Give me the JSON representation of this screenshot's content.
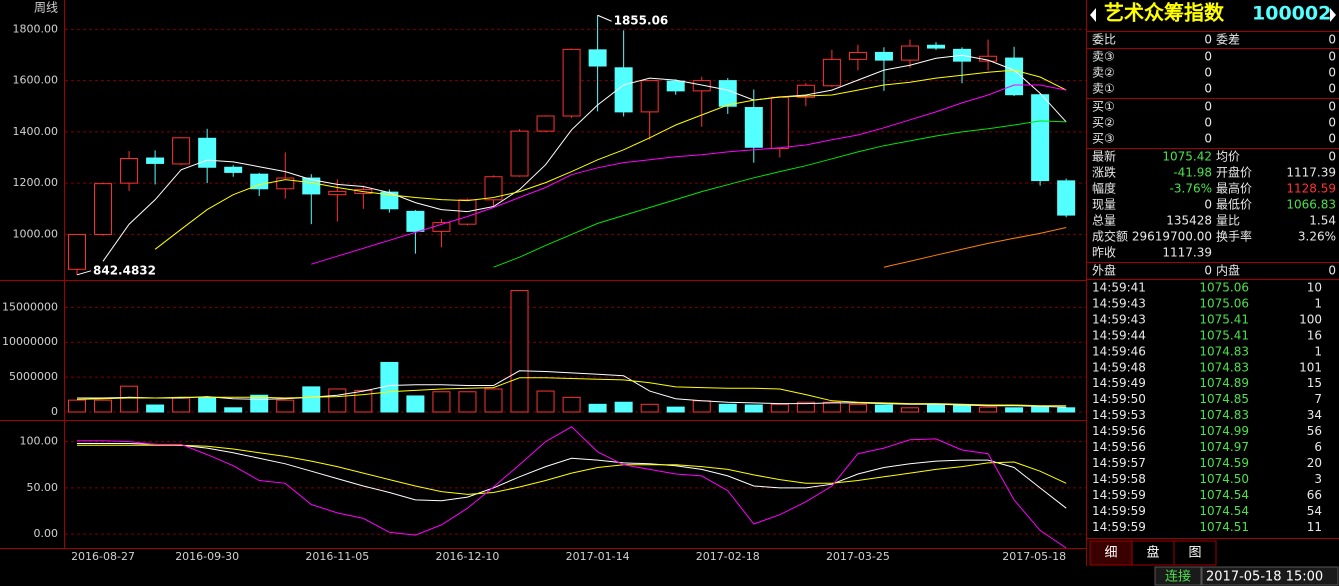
{
  "chart_data": [
    {
      "type": "candlestick",
      "period": "周线",
      "categories": [
        null,
        "2016-08-27",
        null,
        null,
        null,
        "2016-09-30",
        null,
        null,
        null,
        null,
        "2016-11-05",
        null,
        null,
        null,
        null,
        "2016-12-10",
        null,
        null,
        null,
        null,
        "2017-01-14",
        null,
        null,
        null,
        null,
        "2017-02-18",
        null,
        null,
        null,
        null,
        "2017-03-25",
        null,
        null,
        null,
        null,
        null,
        null,
        null,
        "2017-05-18"
      ],
      "open": [
        864,
        1000,
        1200,
        1298,
        1275,
        1375,
        1262,
        1235,
        1178,
        1220,
        1155,
        1160,
        1165,
        1090,
        1012,
        1040,
        1135,
        1228,
        1403,
        1462,
        1720,
        1650,
        1478,
        1598,
        1560,
        1600,
        1495,
        1335,
        1535,
        1580,
        1683,
        1710,
        1680,
        1738,
        1722,
        1676,
        1688,
        1545,
        1209
      ],
      "high": [
        1000,
        1202,
        1325,
        1328,
        1377,
        1412,
        1270,
        1240,
        1320,
        1235,
        1215,
        1190,
        1175,
        1095,
        1060,
        1140,
        1230,
        1410,
        1465,
        1725,
        1855.06,
        1796,
        1600,
        1605,
        1615,
        1610,
        1565,
        1540,
        1590,
        1720,
        1740,
        1730,
        1760,
        1750,
        1730,
        1760,
        1732,
        1550,
        1218
      ],
      "low": [
        842.4832,
        995,
        1170,
        1195,
        1270,
        1200,
        1225,
        1150,
        1140,
        1040,
        1050,
        1100,
        1085,
        925,
        950,
        1035,
        1110,
        1225,
        1400,
        1455,
        1480,
        1460,
        1370,
        1545,
        1420,
        1470,
        1280,
        1300,
        1500,
        1575,
        1640,
        1560,
        1650,
        1720,
        1590,
        1640,
        1540,
        1190,
        1066.83
      ],
      "close": [
        1000,
        1198,
        1296,
        1277,
        1377,
        1262,
        1242,
        1178,
        1220,
        1158,
        1168,
        1175,
        1100,
        1012,
        1046,
        1135,
        1225,
        1403,
        1462,
        1722,
        1657,
        1478,
        1600,
        1560,
        1600,
        1500,
        1340,
        1535,
        1582,
        1683,
        1710,
        1680,
        1735,
        1727,
        1676,
        1695,
        1545,
        1210,
        1075.42
      ],
      "up_color": "#ff3232",
      "down_color": "#54ffff",
      "series": [
        {
          "color": "#ffffff",
          "values": [
            null,
            895,
            1040,
            1135,
            1252,
            1290,
            1283,
            1264,
            1245,
            1214,
            1195,
            1187,
            1163,
            1124,
            1097,
            1089,
            1109,
            1175,
            1272,
            1408,
            1505,
            1583,
            1610,
            1602,
            1583,
            1563,
            1524,
            1536,
            1544,
            1563,
            1602,
            1641,
            1660,
            1687,
            1699,
            1680,
            1641,
            1551,
            1439
          ]
        },
        {
          "color": "#ffff00",
          "values": [
            null,
            null,
            null,
            942,
            1020,
            1097,
            1155,
            1194,
            1214,
            1202,
            1183,
            1167,
            1155,
            1144,
            1136,
            1132,
            1144,
            1167,
            1202,
            1245,
            1291,
            1330,
            1377,
            1427,
            1466,
            1505,
            1524,
            1536,
            1540,
            1544,
            1563,
            1583,
            1594,
            1610,
            1621,
            1633,
            1641,
            1614,
            1563
          ]
        },
        {
          "color": "#ff00ff",
          "values": [
            null,
            null,
            null,
            null,
            null,
            null,
            null,
            null,
            null,
            884,
            915,
            946,
            977,
            1008,
            1039,
            1070,
            1105,
            1144,
            1183,
            1233,
            1260,
            1280,
            1291,
            1303,
            1311,
            1322,
            1330,
            1338,
            1349,
            1369,
            1388,
            1416,
            1447,
            1478,
            1513,
            1544,
            1583,
            1583,
            1563
          ]
        },
        {
          "color": "#00e600",
          "values": [
            null,
            null,
            null,
            null,
            null,
            null,
            null,
            null,
            null,
            null,
            null,
            null,
            null,
            null,
            null,
            null,
            872,
            911,
            957,
            1000,
            1043,
            1074,
            1105,
            1136,
            1167,
            1194,
            1221,
            1245,
            1268,
            1295,
            1322,
            1346,
            1365,
            1384,
            1400,
            1412,
            1427,
            1443,
            1439
          ]
        },
        {
          "color": "#ff8000",
          "values": [
            null,
            null,
            null,
            null,
            null,
            null,
            null,
            null,
            null,
            null,
            null,
            null,
            null,
            null,
            null,
            null,
            null,
            null,
            null,
            null,
            null,
            null,
            null,
            null,
            null,
            null,
            null,
            null,
            null,
            null,
            null,
            872,
            895,
            919,
            942,
            965,
            985,
            1004,
            1027
          ]
        }
      ],
      "annotations": [
        {
          "value": 1855.06,
          "label": "1855.06"
        },
        {
          "value": 842.4832,
          "label": "842.4832"
        }
      ],
      "ylim": [
        830,
        1895
      ],
      "yticks": [
        {
          "value": 1000,
          "label": "1000.00"
        },
        {
          "value": 1200,
          "label": "1200.00"
        },
        {
          "value": 1400,
          "label": "1400.00"
        },
        {
          "value": 1600,
          "label": "1600.00"
        },
        {
          "value": 1800,
          "label": "1800.00"
        }
      ],
      "grid": true
    },
    {
      "type": "bar",
      "values": [
        1700000,
        1700000,
        3700000,
        1000000,
        2000000,
        2000000,
        600000,
        2400000,
        1700000,
        3600000,
        3300000,
        3100000,
        7100000,
        2300000,
        2900000,
        2900000,
        3300000,
        17400000,
        3000000,
        2100000,
        1100000,
        1400000,
        1100000,
        700000,
        1600000,
        1100000,
        1000000,
        1100000,
        1400000,
        1400000,
        1100000,
        1000000,
        600000,
        1100000,
        1000000,
        700000,
        600000,
        700000,
        600000
      ],
      "series": [
        {
          "color": "#ffffff",
          "values": [
            2000000,
            2000000,
            2100000,
            2000000,
            2000000,
            2200000,
            1900000,
            1800000,
            1900000,
            2100000,
            2400000,
            3000000,
            3800000,
            3900000,
            3900000,
            3800000,
            3800000,
            5900000,
            5800000,
            5600000,
            5400000,
            5200000,
            3000000,
            1900000,
            1600000,
            1400000,
            1300000,
            1200000,
            1200000,
            1300000,
            1300000,
            1200000,
            1100000,
            1100000,
            1000000,
            900000,
            900000,
            800000,
            700000
          ]
        },
        {
          "color": "#ffff00",
          "values": [
            1800000,
            1900000,
            2000000,
            2000000,
            2100000,
            2100000,
            2100000,
            2100000,
            2000000,
            2100000,
            2200000,
            2500000,
            2900000,
            3100000,
            3300000,
            3400000,
            3500000,
            4900000,
            4900000,
            4800000,
            4700000,
            4600000,
            4200000,
            3600000,
            3500000,
            3400000,
            3400000,
            3300000,
            2500000,
            1600000,
            1400000,
            1300000,
            1200000,
            1200000,
            1100000,
            1000000,
            1000000,
            900000,
            900000
          ]
        }
      ],
      "ylim": [
        0,
        18200000
      ],
      "yticks": [
        0,
        5000000,
        10000000,
        15000000
      ],
      "grid": true
    },
    {
      "type": "line",
      "series": [
        {
          "color": "#ffffff",
          "values": [
            98,
            98,
            98,
            97,
            96,
            93,
            88,
            82,
            76,
            68,
            60,
            52,
            45,
            37,
            36,
            40,
            50,
            62,
            73,
            82,
            80,
            77,
            76,
            74,
            70,
            63,
            52,
            50,
            50,
            54,
            65,
            72,
            76,
            79,
            80,
            80,
            72,
            50,
            28
          ]
        },
        {
          "color": "#ffff00",
          "values": [
            96,
            96,
            96,
            96,
            96,
            95,
            92,
            88,
            84,
            79,
            73,
            66,
            59,
            52,
            46,
            43,
            45,
            51,
            58,
            66,
            72,
            75,
            75,
            75,
            73,
            70,
            64,
            59,
            55,
            55,
            58,
            62,
            66,
            70,
            73,
            77,
            78,
            68,
            55
          ]
        },
        {
          "color": "#ff00ff",
          "values": [
            101,
            101,
            100,
            97,
            97,
            86,
            74,
            58,
            55,
            32,
            23,
            17,
            2,
            -1,
            10,
            28,
            51,
            75,
            100,
            116,
            89,
            75,
            70,
            65,
            63,
            47,
            11,
            21,
            35,
            52,
            87,
            93,
            102,
            103,
            91,
            87,
            37,
            4,
            -15
          ]
        }
      ],
      "ylim": [
        -15,
        118
      ],
      "yticks": [
        {
          "value": 0,
          "label": "0.00"
        },
        {
          "value": 50,
          "label": "50.00"
        },
        {
          "value": 100,
          "label": "100.00"
        }
      ],
      "grid": true
    }
  ],
  "quote_panel": {
    "title": "艺术众筹指数",
    "code": "100002",
    "order_ratio": [
      "委比",
      "0",
      "委差",
      "0"
    ],
    "sell": [
      [
        "卖③",
        "0",
        "0"
      ],
      [
        "卖②",
        "0",
        "0"
      ],
      [
        "卖①",
        "0",
        "0"
      ]
    ],
    "buy": [
      [
        "买①",
        "0",
        "0"
      ],
      [
        "买②",
        "0",
        "0"
      ],
      [
        "买③",
        "0",
        "0"
      ]
    ],
    "stats": [
      [
        "最新",
        "1075.42",
        "均价",
        "0"
      ],
      [
        "涨跌",
        "-41.98",
        "开盘价",
        "1117.39"
      ],
      [
        "幅度",
        "-3.76%",
        "最高价",
        "1128.59"
      ],
      [
        "现量",
        "0",
        "最低价",
        "1066.83"
      ],
      [
        "总量",
        "135428",
        "量比",
        "1.54"
      ],
      [
        "成交额",
        "29619700.00",
        "换手率",
        "3.26%"
      ],
      [
        "昨收",
        "1117.39"
      ]
    ],
    "outer": [
      "外盘",
      "0",
      "内盘",
      "0"
    ],
    "trades": [
      [
        "14:59:41",
        "1075.06",
        "10"
      ],
      [
        "14:59:43",
        "1075.06",
        "1"
      ],
      [
        "14:59:43",
        "1075.41",
        "100"
      ],
      [
        "14:59:44",
        "1075.41",
        "16"
      ],
      [
        "14:59:46",
        "1074.83",
        "1"
      ],
      [
        "14:59:48",
        "1074.83",
        "101"
      ],
      [
        "14:59:49",
        "1074.89",
        "15"
      ],
      [
        "14:59:50",
        "1074.85",
        "7"
      ],
      [
        "14:59:53",
        "1074.83",
        "34"
      ],
      [
        "14:59:56",
        "1074.99",
        "56"
      ],
      [
        "14:59:56",
        "1074.97",
        "6"
      ],
      [
        "14:59:57",
        "1074.59",
        "20"
      ],
      [
        "14:59:58",
        "1074.50",
        "3"
      ],
      [
        "14:59:59",
        "1074.54",
        "66"
      ],
      [
        "14:59:59",
        "1074.54",
        "54"
      ],
      [
        "14:59:59",
        "1074.51",
        "11"
      ]
    ],
    "tabs": [
      "细",
      "盘",
      "图"
    ]
  },
  "status": {
    "connection": "连接",
    "datetime": "2017-05-18 15:00"
  }
}
